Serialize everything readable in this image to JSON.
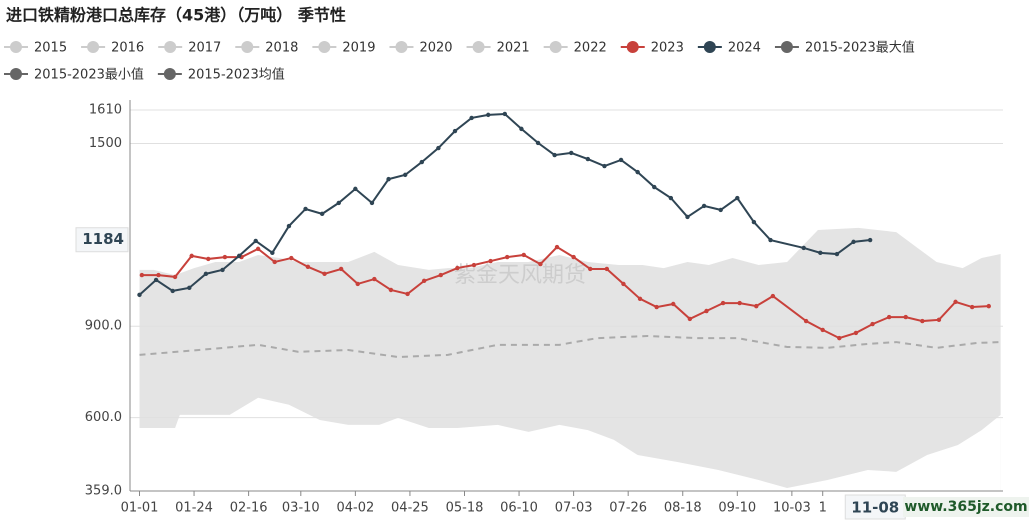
{
  "chart_data": {
    "type": "line",
    "title": "进口铁精粉港口总库存（45港）（万吨） 季节性",
    "xlim": [
      -4,
      364
    ],
    "ylim": [
      359,
      1610
    ],
    "xticks": [
      {
        "value": 0,
        "label": "01-01"
      },
      {
        "value": 23,
        "label": "01-24"
      },
      {
        "value": 46,
        "label": "02-16"
      },
      {
        "value": 68,
        "label": "03-10"
      },
      {
        "value": 91,
        "label": "04-02"
      },
      {
        "value": 114,
        "label": "04-25"
      },
      {
        "value": 137,
        "label": "05-18"
      },
      {
        "value": 160,
        "label": "06-10"
      },
      {
        "value": 183,
        "label": "07-03"
      },
      {
        "value": 206,
        "label": "07-26"
      },
      {
        "value": 229,
        "label": "08-18"
      },
      {
        "value": 252,
        "label": "09-10"
      },
      {
        "value": 275,
        "label": "10-03"
      },
      {
        "value": 288,
        "label": "1"
      }
    ],
    "yticks": [
      {
        "value": 359,
        "label": "359.0"
      },
      {
        "value": 600,
        "label": "600.0"
      },
      {
        "value": 900,
        "label": "900.0"
      },
      1500,
      1610
    ],
    "grid": true,
    "pointer": {
      "x": 311,
      "x_label": "11-08",
      "y": 1184,
      "y_label": "1184"
    },
    "watermarks": [
      "紫金天风期货",
      "www.365jz.com"
    ],
    "series": [
      {
        "name": "2015",
        "color": "#cccccc",
        "visible": false
      },
      {
        "name": "2016",
        "color": "#cccccc",
        "visible": false
      },
      {
        "name": "2017",
        "color": "#cccccc",
        "visible": false
      },
      {
        "name": "2018",
        "color": "#cccccc",
        "visible": false
      },
      {
        "name": "2019",
        "color": "#cccccc",
        "visible": false
      },
      {
        "name": "2020",
        "color": "#cccccc",
        "visible": false
      },
      {
        "name": "2021",
        "color": "#cccccc",
        "visible": false
      },
      {
        "name": "2022",
        "color": "#cccccc",
        "visible": false
      },
      {
        "name": "2023",
        "color": "#c8413b",
        "style": "line",
        "x": [
          1,
          8,
          15,
          22,
          29,
          36,
          43,
          50,
          57,
          64,
          71,
          78,
          85,
          92,
          99,
          106,
          113,
          120,
          127,
          134,
          141,
          148,
          155,
          162,
          169,
          176,
          183,
          190,
          197,
          204,
          211,
          218,
          225,
          232,
          239,
          246,
          253,
          260,
          267,
          281,
          288,
          295,
          302,
          309,
          316,
          323,
          330,
          337,
          344,
          351,
          358
        ],
        "values": [
          1068,
          1068,
          1062,
          1131,
          1121,
          1127,
          1127,
          1154,
          1111,
          1124,
          1095,
          1072,
          1088,
          1039,
          1055,
          1019,
          1006,
          1049,
          1068,
          1091,
          1101,
          1114,
          1127,
          1134,
          1104,
          1160,
          1127,
          1088,
          1088,
          1039,
          990,
          963,
          973,
          924,
          950,
          976,
          976,
          966,
          999,
          917,
          888,
          861,
          878,
          907,
          930,
          930,
          917,
          921,
          980,
          963,
          966
        ]
      },
      {
        "name": "2024",
        "color": "#2f4554",
        "style": "line",
        "x": [
          0,
          7,
          14,
          21,
          28,
          35,
          42,
          49,
          56,
          63,
          70,
          77,
          84,
          91,
          98,
          105,
          112,
          119,
          126,
          133,
          140,
          147,
          154,
          161,
          168,
          175,
          182,
          189,
          196,
          203,
          210,
          217,
          224,
          231,
          238,
          245,
          252,
          259,
          266,
          280,
          287,
          294,
          301,
          308
        ],
        "values": [
          1003,
          1052,
          1016,
          1026,
          1072,
          1085,
          1131,
          1180,
          1141,
          1229,
          1285,
          1269,
          1305,
          1351,
          1305,
          1383,
          1397,
          1439,
          1485,
          1541,
          1584,
          1594,
          1597,
          1548,
          1502,
          1462,
          1469,
          1449,
          1426,
          1446,
          1406,
          1357,
          1321,
          1259,
          1295,
          1282,
          1321,
          1242,
          1183,
          1157,
          1141,
          1137,
          1177,
          1183
        ]
      },
      {
        "name": "2015-2023最大值",
        "color": "#666666",
        "style": "band-top",
        "x": [
          0,
          6,
          15,
          23,
          32,
          42,
          50,
          59,
          67,
          80,
          88,
          99,
          109,
          122,
          130,
          139,
          151,
          164,
          177,
          189,
          202,
          212,
          221,
          231,
          240,
          250,
          261,
          273,
          286,
          303,
          319,
          328,
          336,
          347,
          355,
          363
        ],
        "values": [
          1085,
          1085,
          1068,
          1091,
          1111,
          1111,
          1134,
          1124,
          1111,
          1111,
          1111,
          1144,
          1101,
          1085,
          1091,
          1091,
          1111,
          1111,
          1134,
          1111,
          1101,
          1101,
          1091,
          1111,
          1101,
          1124,
          1101,
          1111,
          1216,
          1223,
          1209,
          1157,
          1111,
          1091,
          1124,
          1137
        ]
      },
      {
        "name": "2015-2023最小值",
        "color": "#666666",
        "style": "band-bottom",
        "x": [
          0,
          15,
          17,
          38,
          50,
          63,
          76,
          88,
          101,
          109,
          122,
          134,
          151,
          164,
          177,
          189,
          200,
          210,
          227,
          244,
          261,
          273,
          290,
          307,
          319,
          332,
          345,
          355,
          363
        ],
        "values": [
          566,
          566,
          609,
          609,
          665,
          642,
          592,
          576,
          576,
          599,
          566,
          566,
          576,
          553,
          576,
          559,
          527,
          477,
          454,
          428,
          395,
          369,
          395,
          428,
          422,
          477,
          510,
          559,
          609
        ]
      },
      {
        "name": "2015-2023均值",
        "color": "#666666",
        "style": "dashed",
        "x": [
          0,
          25,
          50,
          67,
          88,
          109,
          130,
          151,
          177,
          193,
          214,
          235,
          252,
          273,
          290,
          307,
          319,
          336,
          353,
          363
        ],
        "values": [
          806,
          822,
          839,
          816,
          822,
          799,
          806,
          839,
          839,
          861,
          868,
          861,
          861,
          832,
          829,
          842,
          848,
          829,
          845,
          848
        ]
      }
    ]
  }
}
